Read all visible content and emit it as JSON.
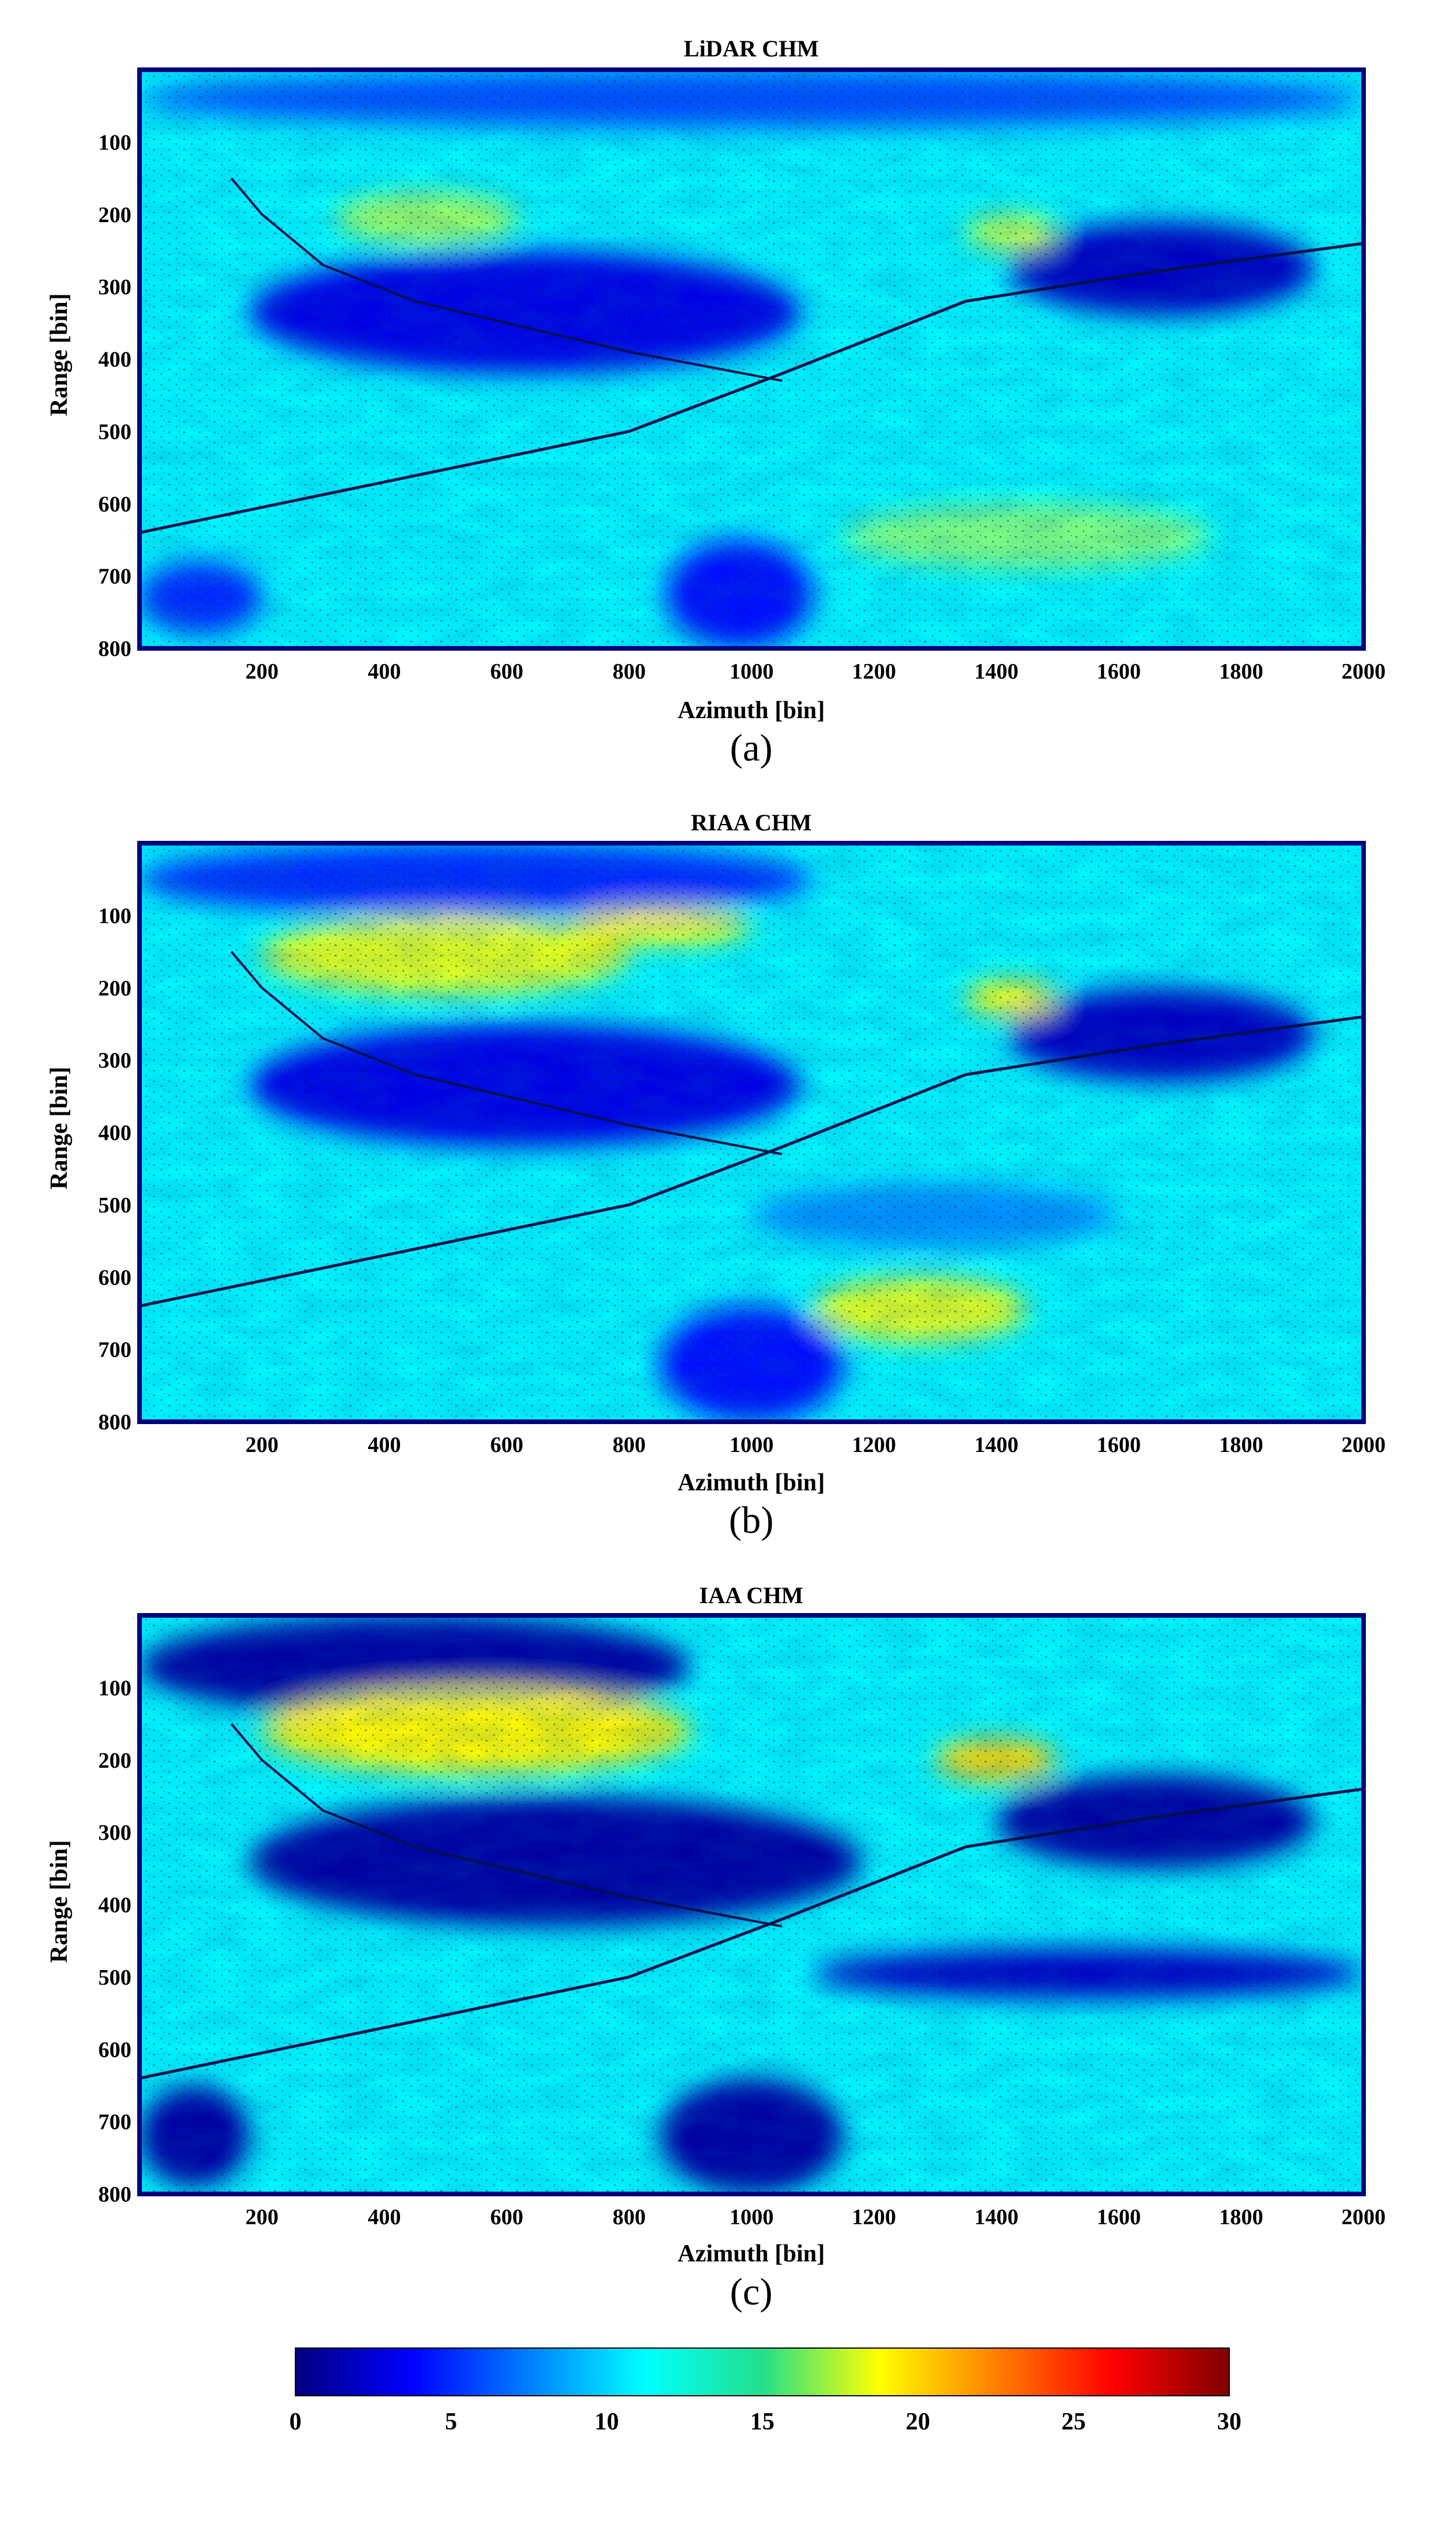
{
  "chart_data": [
    {
      "type": "heatmap",
      "title": "LiDAR CHM",
      "subcaption": "(a)",
      "xlabel": "Azimuth [bin]",
      "ylabel": "Range [bin]",
      "xlim": [
        0,
        2000
      ],
      "ylim": [
        800,
        0
      ],
      "xticks": [
        200,
        400,
        600,
        800,
        1000,
        1200,
        1400,
        1600,
        1800,
        2000
      ],
      "yticks": [
        100,
        200,
        300,
        400,
        500,
        600,
        700,
        800
      ],
      "colormap": "jet",
      "clim": [
        0,
        30
      ],
      "regions": [
        {
          "x": [
            180,
            1080
          ],
          "y": [
            250,
            420
          ],
          "value": 3
        },
        {
          "x": [
            1420,
            1920
          ],
          "y": [
            210,
            340
          ],
          "value": 2
        },
        {
          "x": [
            0,
            2000
          ],
          "y": [
            0,
            80
          ],
          "value": 6
        },
        {
          "x": [
            320,
            620
          ],
          "y": [
            170,
            240
          ],
          "value": 16
        },
        {
          "x": [
            1350,
            1500
          ],
          "y": [
            200,
            250
          ],
          "value": 17
        },
        {
          "x": [
            1150,
            1750
          ],
          "y": [
            600,
            690
          ],
          "value": 15
        },
        {
          "x": [
            860,
            1100
          ],
          "y": [
            650,
            800
          ],
          "value": 4
        },
        {
          "x": [
            0,
            200
          ],
          "y": [
            680,
            780
          ],
          "value": 5
        }
      ]
    },
    {
      "type": "heatmap",
      "title": "RIAA CHM",
      "subcaption": "(b)",
      "xlabel": "Azimuth [bin]",
      "ylabel": "Range [bin]",
      "xlim": [
        0,
        2000
      ],
      "ylim": [
        800,
        0
      ],
      "xticks": [
        200,
        400,
        600,
        800,
        1000,
        1200,
        1400,
        1600,
        1800,
        2000
      ],
      "yticks": [
        100,
        200,
        300,
        400,
        500,
        600,
        700,
        800
      ],
      "colormap": "jet",
      "clim": [
        0,
        30
      ],
      "regions": [
        {
          "x": [
            180,
            1080
          ],
          "y": [
            250,
            420
          ],
          "value": 3
        },
        {
          "x": [
            1420,
            1920
          ],
          "y": [
            200,
            330
          ],
          "value": 2
        },
        {
          "x": [
            0,
            1100
          ],
          "y": [
            0,
            100
          ],
          "value": 5
        },
        {
          "x": [
            200,
            800
          ],
          "y": [
            100,
            210
          ],
          "value": 18
        },
        {
          "x": [
            700,
            1000
          ],
          "y": [
            90,
            140
          ],
          "value": 19
        },
        {
          "x": [
            1350,
            1500
          ],
          "y": [
            190,
            240
          ],
          "value": 19
        },
        {
          "x": [
            1100,
            1450
          ],
          "y": [
            600,
            690
          ],
          "value": 18
        },
        {
          "x": [
            850,
            1150
          ],
          "y": [
            640,
            800
          ],
          "value": 4
        },
        {
          "x": [
            1000,
            1600
          ],
          "y": [
            470,
            560
          ],
          "value": 8
        }
      ]
    },
    {
      "type": "heatmap",
      "title": "IAA CHM",
      "subcaption": "(c)",
      "xlabel": "Azimuth [bin]",
      "ylabel": "Range [bin]",
      "xlim": [
        0,
        2000
      ],
      "ylim": [
        800,
        0
      ],
      "xticks": [
        200,
        400,
        600,
        800,
        1000,
        1200,
        1400,
        1600,
        1800,
        2000
      ],
      "yticks": [
        100,
        200,
        300,
        400,
        500,
        600,
        700,
        800
      ],
      "colormap": "jet",
      "clim": [
        0,
        30
      ],
      "regions": [
        {
          "x": [
            180,
            1180
          ],
          "y": [
            250,
            430
          ],
          "value": 1
        },
        {
          "x": [
            1400,
            1920
          ],
          "y": [
            220,
            350
          ],
          "value": 1
        },
        {
          "x": [
            0,
            900
          ],
          "y": [
            0,
            140
          ],
          "value": 1
        },
        {
          "x": [
            200,
            900
          ],
          "y": [
            100,
            220
          ],
          "value": 19
        },
        {
          "x": [
            1300,
            1500
          ],
          "y": [
            170,
            230
          ],
          "value": 20
        },
        {
          "x": [
            850,
            1150
          ],
          "y": [
            640,
            800
          ],
          "value": 1
        },
        {
          "x": [
            0,
            180
          ],
          "y": [
            650,
            790
          ],
          "value": 1
        },
        {
          "x": [
            1100,
            2000
          ],
          "y": [
            460,
            530
          ],
          "value": 2
        }
      ]
    }
  ],
  "colorbar": {
    "colormap": "jet",
    "range": [
      0,
      30
    ],
    "ticks": [
      "0",
      "5",
      "10",
      "15",
      "20",
      "25",
      "30"
    ]
  }
}
